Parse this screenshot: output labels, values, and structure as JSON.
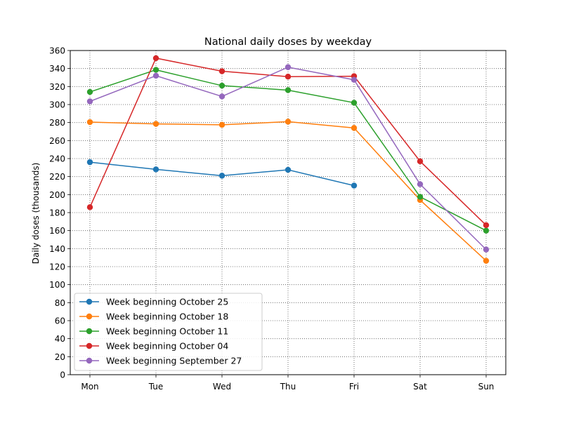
{
  "chart_data": {
    "type": "line",
    "title": "National daily doses by weekday",
    "xlabel": "",
    "ylabel": "Daily doses (thousands)",
    "categories": [
      "Mon",
      "Tue",
      "Wed",
      "Thu",
      "Fri",
      "Sat",
      "Sun"
    ],
    "ylim": [
      0,
      360
    ],
    "yticks": [
      0,
      20,
      40,
      60,
      80,
      100,
      120,
      140,
      160,
      180,
      200,
      220,
      240,
      260,
      280,
      300,
      320,
      340,
      360
    ],
    "grid": true,
    "legend_position": "lower-left",
    "series": [
      {
        "name": "Week beginning October 25",
        "color": "#1f77b4",
        "values": [
          236,
          228,
          221,
          227.5,
          210,
          null,
          null
        ]
      },
      {
        "name": "Week beginning October 18",
        "color": "#ff7f0e",
        "values": [
          280.5,
          278.5,
          277.5,
          281,
          274,
          194,
          126.5
        ]
      },
      {
        "name": "Week beginning October 11",
        "color": "#2ca02c",
        "values": [
          314,
          338.5,
          321,
          316,
          302,
          197.5,
          160
        ]
      },
      {
        "name": "Week beginning October 04",
        "color": "#d62728",
        "values": [
          186,
          351.5,
          337,
          331,
          331.5,
          237,
          166
        ]
      },
      {
        "name": "Week beginning September 27",
        "color": "#9467bd",
        "values": [
          303.5,
          332,
          309,
          341.5,
          327.5,
          211.5,
          139
        ]
      }
    ]
  }
}
